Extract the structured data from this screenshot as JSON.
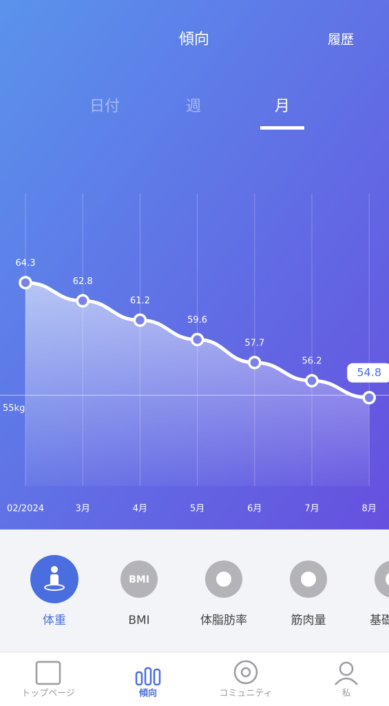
{
  "header": {
    "title": "傾向",
    "right": "履歴"
  },
  "tabs": {
    "items": [
      "日付",
      "週",
      "月"
    ],
    "selected": 2
  },
  "chart_data": {
    "type": "line",
    "categories": [
      "02/2024",
      "3月",
      "4月",
      "5月",
      "6月",
      "7月",
      "8月"
    ],
    "values": [
      64.3,
      62.8,
      61.2,
      59.6,
      57.7,
      56.2,
      54.8
    ],
    "ylim": [
      47.5,
      71.7
    ],
    "yticks": [
      {
        "value": 55,
        "label": "55kg"
      }
    ],
    "color": "#ffffff"
  },
  "metrics": {
    "items": [
      {
        "label": "体重"
      },
      {
        "label": "BMI",
        "icon": "BMI"
      },
      {
        "label": "体脂肪率"
      },
      {
        "label": "筋肉量"
      },
      {
        "label": "基礎代謝"
      }
    ],
    "selected": 0
  },
  "nav": {
    "items": [
      "トップページ",
      "傾向",
      "コミュニティ",
      "私"
    ],
    "selected": 1
  }
}
